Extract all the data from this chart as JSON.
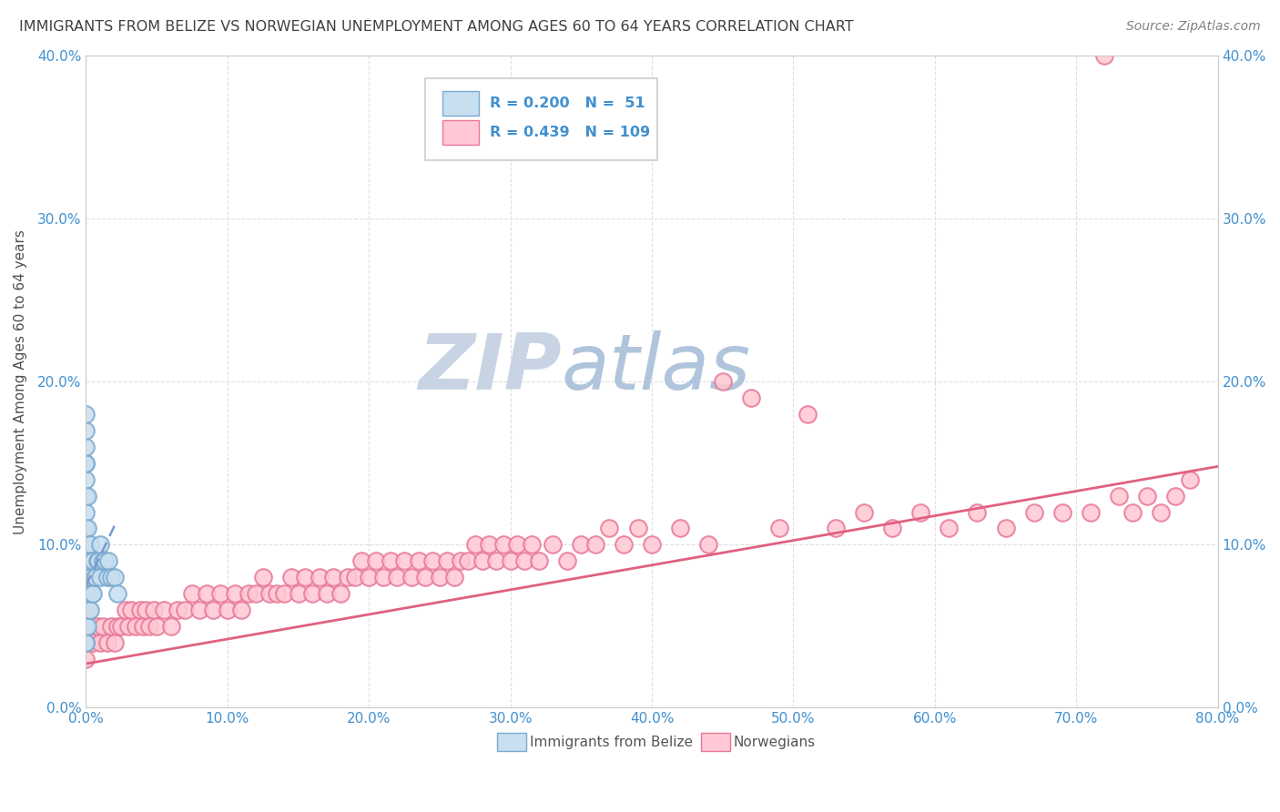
{
  "title": "IMMIGRANTS FROM BELIZE VS NORWEGIAN UNEMPLOYMENT AMONG AGES 60 TO 64 YEARS CORRELATION CHART",
  "source": "Source: ZipAtlas.com",
  "ylabel": "Unemployment Among Ages 60 to 64 years",
  "xlim": [
    0.0,
    0.8
  ],
  "ylim": [
    0.0,
    0.4
  ],
  "xticks": [
    0.0,
    0.1,
    0.2,
    0.3,
    0.4,
    0.5,
    0.6,
    0.7,
    0.8
  ],
  "yticks": [
    0.0,
    0.1,
    0.2,
    0.3,
    0.4
  ],
  "xtick_labels": [
    "0.0%",
    "10.0%",
    "20.0%",
    "30.0%",
    "40.0%",
    "50.0%",
    "60.0%",
    "70.0%",
    "80.0%"
  ],
  "ytick_labels": [
    "0.0%",
    "10.0%",
    "20.0%",
    "30.0%",
    "40.0%"
  ],
  "legend_R1": "0.200",
  "legend_N1": "51",
  "legend_R2": "0.439",
  "legend_N2": "109",
  "belize_face_color": "#c8dff0",
  "belize_edge_color": "#7aaad0",
  "norwegian_face_color": "#ffc8d4",
  "norwegian_edge_color": "#e87898",
  "belize_line_color": "#7898d0",
  "norwegian_line_color": "#e06080",
  "watermark_zip_color": "#c8d4e4",
  "watermark_atlas_color": "#a8bcd8",
  "background_color": "#ffffff",
  "grid_color": "#e0e0e0",
  "title_color": "#404040",
  "axis_label_color": "#505050",
  "tick_color": "#4090d0",
  "source_color": "#808080",
  "legend_text_color": "#4090d0",
  "belize_x": [
    0.0,
    0.0,
    0.0,
    0.0,
    0.0,
    0.0,
    0.0,
    0.0,
    0.0,
    0.0,
    0.0,
    0.0,
    0.0,
    0.0,
    0.0,
    0.0,
    0.0,
    0.0,
    0.0,
    0.0,
    0.0,
    0.0,
    0.0,
    0.001,
    0.001,
    0.001,
    0.001,
    0.001,
    0.002,
    0.002,
    0.002,
    0.003,
    0.003,
    0.003,
    0.004,
    0.004,
    0.005,
    0.005,
    0.006,
    0.007,
    0.008,
    0.009,
    0.01,
    0.01,
    0.012,
    0.013,
    0.015,
    0.016,
    0.018,
    0.02,
    0.022
  ],
  "belize_y": [
    0.04,
    0.04,
    0.05,
    0.05,
    0.06,
    0.06,
    0.07,
    0.07,
    0.08,
    0.08,
    0.09,
    0.09,
    0.1,
    0.1,
    0.11,
    0.12,
    0.13,
    0.14,
    0.15,
    0.15,
    0.16,
    0.17,
    0.18,
    0.05,
    0.07,
    0.09,
    0.11,
    0.13,
    0.06,
    0.08,
    0.1,
    0.06,
    0.08,
    0.1,
    0.07,
    0.09,
    0.07,
    0.09,
    0.08,
    0.08,
    0.09,
    0.09,
    0.08,
    0.1,
    0.09,
    0.09,
    0.08,
    0.09,
    0.08,
    0.08,
    0.07
  ],
  "norwegian_x": [
    0.0,
    0.0,
    0.0,
    0.0,
    0.0,
    0.005,
    0.008,
    0.01,
    0.012,
    0.015,
    0.018,
    0.02,
    0.022,
    0.025,
    0.028,
    0.03,
    0.032,
    0.035,
    0.038,
    0.04,
    0.042,
    0.045,
    0.048,
    0.05,
    0.055,
    0.06,
    0.065,
    0.07,
    0.075,
    0.08,
    0.085,
    0.09,
    0.095,
    0.1,
    0.105,
    0.11,
    0.115,
    0.12,
    0.125,
    0.13,
    0.135,
    0.14,
    0.145,
    0.15,
    0.155,
    0.16,
    0.165,
    0.17,
    0.175,
    0.18,
    0.185,
    0.19,
    0.195,
    0.2,
    0.205,
    0.21,
    0.215,
    0.22,
    0.225,
    0.23,
    0.235,
    0.24,
    0.245,
    0.25,
    0.255,
    0.26,
    0.265,
    0.27,
    0.275,
    0.28,
    0.285,
    0.29,
    0.295,
    0.3,
    0.305,
    0.31,
    0.315,
    0.32,
    0.33,
    0.34,
    0.35,
    0.36,
    0.37,
    0.38,
    0.39,
    0.4,
    0.42,
    0.44,
    0.45,
    0.47,
    0.49,
    0.51,
    0.53,
    0.55,
    0.57,
    0.59,
    0.61,
    0.63,
    0.65,
    0.67,
    0.69,
    0.71,
    0.73,
    0.74,
    0.75,
    0.76,
    0.77,
    0.78,
    0.72
  ],
  "norwegian_y": [
    0.04,
    0.05,
    0.06,
    0.03,
    0.07,
    0.04,
    0.05,
    0.04,
    0.05,
    0.04,
    0.05,
    0.04,
    0.05,
    0.05,
    0.06,
    0.05,
    0.06,
    0.05,
    0.06,
    0.05,
    0.06,
    0.05,
    0.06,
    0.05,
    0.06,
    0.05,
    0.06,
    0.06,
    0.07,
    0.06,
    0.07,
    0.06,
    0.07,
    0.06,
    0.07,
    0.06,
    0.07,
    0.07,
    0.08,
    0.07,
    0.07,
    0.07,
    0.08,
    0.07,
    0.08,
    0.07,
    0.08,
    0.07,
    0.08,
    0.07,
    0.08,
    0.08,
    0.09,
    0.08,
    0.09,
    0.08,
    0.09,
    0.08,
    0.09,
    0.08,
    0.09,
    0.08,
    0.09,
    0.08,
    0.09,
    0.08,
    0.09,
    0.09,
    0.1,
    0.09,
    0.1,
    0.09,
    0.1,
    0.09,
    0.1,
    0.09,
    0.1,
    0.09,
    0.1,
    0.09,
    0.1,
    0.1,
    0.11,
    0.1,
    0.11,
    0.1,
    0.11,
    0.1,
    0.2,
    0.19,
    0.11,
    0.18,
    0.11,
    0.12,
    0.11,
    0.12,
    0.11,
    0.12,
    0.11,
    0.12,
    0.12,
    0.12,
    0.13,
    0.12,
    0.13,
    0.12,
    0.13,
    0.14,
    0.4
  ],
  "norw_line_x0": 0.0,
  "norw_line_y0": 0.027,
  "norw_line_x1": 0.8,
  "norw_line_y1": 0.148,
  "belize_line_x0": 0.0,
  "belize_line_y0": 0.075,
  "belize_line_x1": 0.022,
  "belize_line_y1": 0.115
}
